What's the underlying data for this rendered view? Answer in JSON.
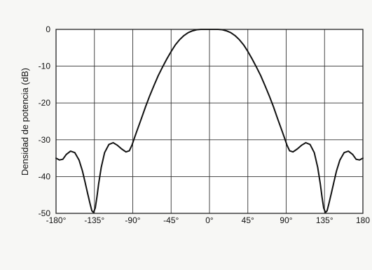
{
  "chart_data": {
    "type": "line",
    "title": "",
    "xlabel": "",
    "ylabel": "Densidad de potencia (dB)",
    "xlim": [
      -180,
      180
    ],
    "ylim": [
      -50,
      0
    ],
    "grid": true,
    "x_ticks": [
      -180,
      -135,
      -90,
      -45,
      0,
      45,
      90,
      135,
      180
    ],
    "x_tick_labels": [
      "-180°",
      "-135°",
      "-90°",
      "-45°",
      "0°",
      "45°",
      "90°",
      "135°",
      "180"
    ],
    "y_ticks": [
      0,
      -10,
      -20,
      -30,
      -40,
      -50
    ],
    "y_tick_labels": [
      "0",
      "-10",
      "-20",
      "-30",
      "-40",
      "-50"
    ],
    "colors": {
      "line": "#111111",
      "grid": "#333333",
      "background": "#ffffff"
    },
    "series": [
      {
        "x": [
          -180,
          -176,
          -172,
          -168,
          -163,
          -158,
          -153,
          -149,
          -146,
          -143,
          -140,
          -138,
          -136,
          -134,
          -132,
          -130,
          -127,
          -123,
          -118,
          -113,
          -108,
          -103,
          -98,
          -94,
          -91,
          -88,
          -85,
          -80,
          -75,
          -70,
          -65,
          -60,
          -55,
          -50,
          -45,
          -40,
          -35,
          -30,
          -25,
          -20,
          -15,
          -10,
          -5,
          0,
          5,
          10,
          15,
          20,
          25,
          30,
          35,
          40,
          45,
          50,
          55,
          60,
          65,
          70,
          75,
          80,
          85,
          88,
          91,
          94,
          98,
          103,
          108,
          113,
          118,
          123,
          127,
          130,
          132,
          134,
          136,
          138,
          140,
          143,
          146,
          149,
          153,
          158,
          163,
          168,
          172,
          176,
          180
        ],
        "y": [
          -35,
          -35.5,
          -35.3,
          -34,
          -33.1,
          -33.5,
          -35.5,
          -38.5,
          -41.5,
          -44.5,
          -47.5,
          -49.3,
          -49.8,
          -48.5,
          -45.5,
          -42,
          -37.5,
          -33.5,
          -31.3,
          -30.8,
          -31.5,
          -32.5,
          -33.3,
          -33,
          -31.5,
          -29.5,
          -27.5,
          -24.3,
          -21,
          -18,
          -15.2,
          -12.5,
          -10.2,
          -8,
          -6,
          -4.2,
          -2.8,
          -1.7,
          -0.9,
          -0.4,
          -0.1,
          0,
          0,
          0,
          0,
          0,
          -0.1,
          -0.4,
          -0.9,
          -1.7,
          -2.8,
          -4.2,
          -6,
          -8,
          -10.2,
          -12.5,
          -15.2,
          -18,
          -21,
          -24.3,
          -27.5,
          -29.5,
          -31.5,
          -33,
          -33.3,
          -32.5,
          -31.5,
          -30.8,
          -31.3,
          -33.5,
          -37.5,
          -42,
          -45.5,
          -48.5,
          -49.8,
          -49.3,
          -47.5,
          -44.5,
          -41.5,
          -38.5,
          -35.5,
          -33.5,
          -33.1,
          -34,
          -35.3,
          -35.5,
          -35
        ]
      }
    ]
  }
}
